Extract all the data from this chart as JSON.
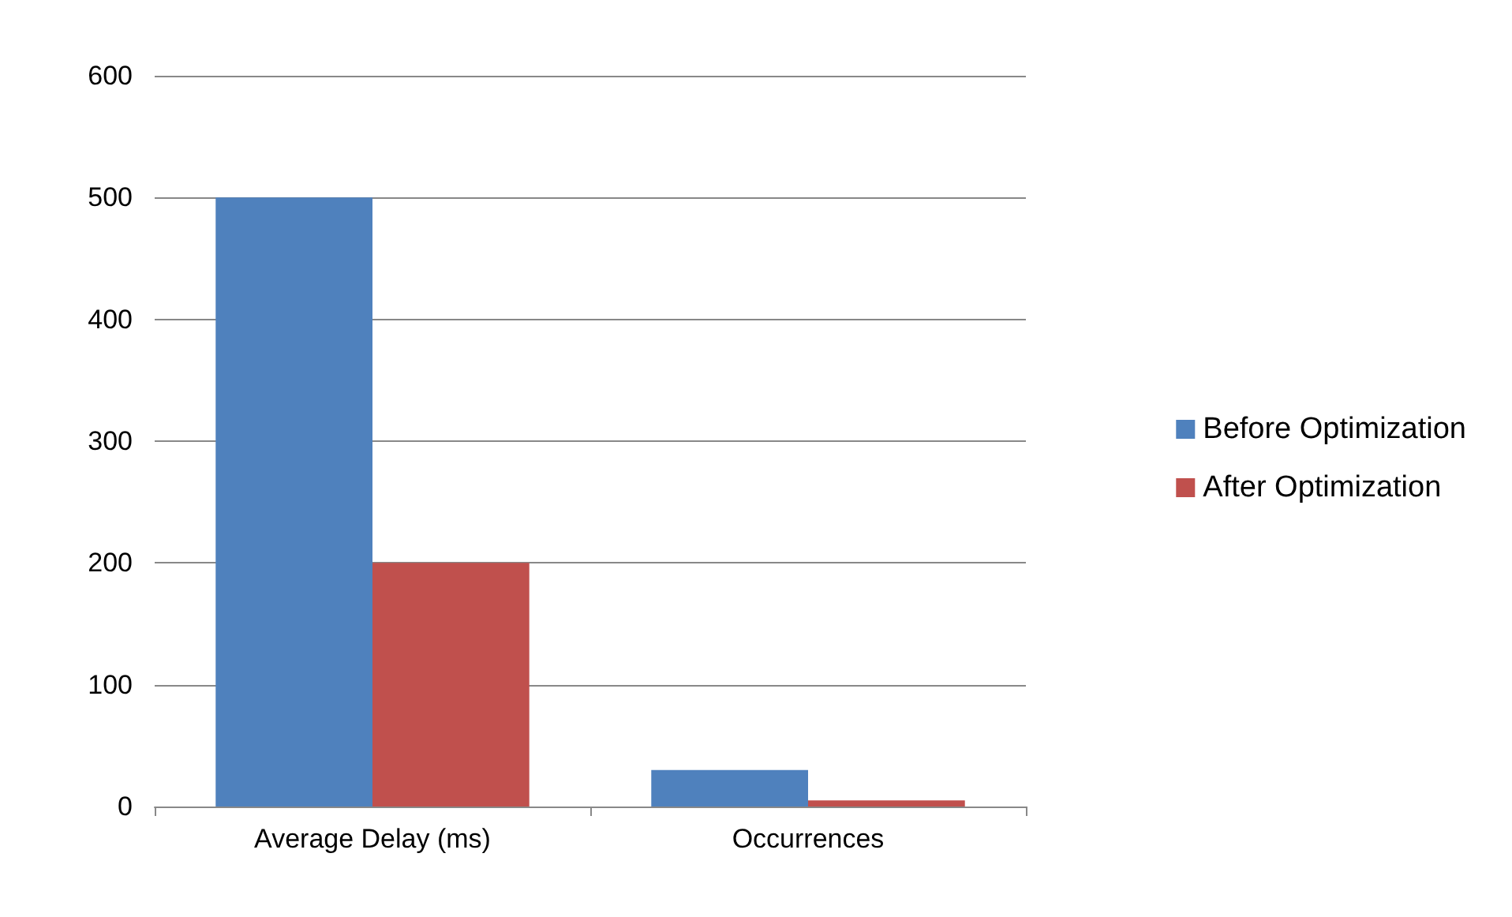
{
  "chart_data": {
    "type": "bar",
    "categories": [
      "Average Delay (ms)",
      "Occurrences"
    ],
    "series": [
      {
        "name": "Before Optimization",
        "color": "#4f81bd",
        "values": [
          500,
          30
        ]
      },
      {
        "name": "After Optimization",
        "color": "#c0504d",
        "values": [
          200,
          5
        ]
      }
    ],
    "ylim": [
      0,
      600
    ],
    "yticks": [
      0,
      100,
      200,
      300,
      400,
      500,
      600
    ],
    "grid": "y",
    "legend": "right"
  }
}
